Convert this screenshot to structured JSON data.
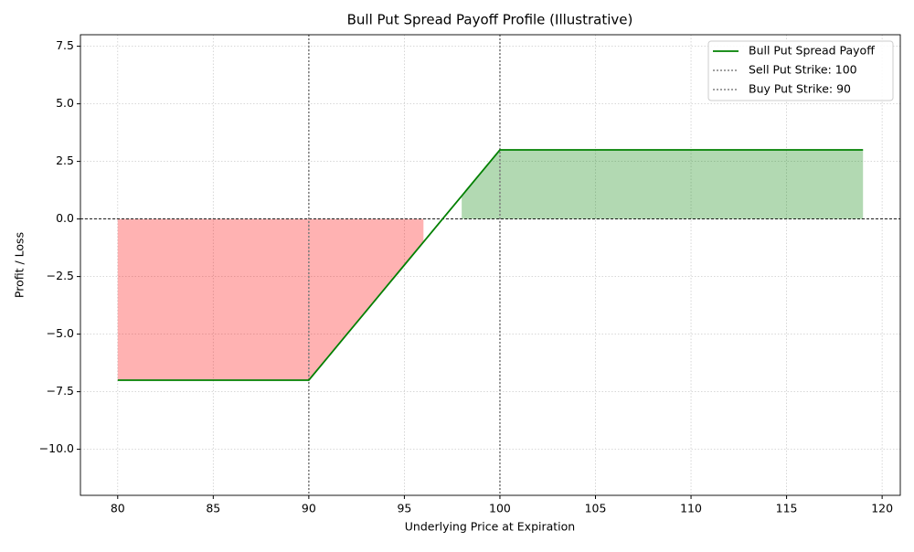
{
  "chart_data": {
    "type": "line",
    "title": "Bull Put Spread Payoff Profile (Illustrative)",
    "xlabel": "Underlying Price at Expiration",
    "ylabel": "Profit / Loss",
    "x": [
      80,
      81,
      82,
      83,
      84,
      85,
      86,
      87,
      88,
      89,
      90,
      91,
      92,
      93,
      94,
      95,
      96,
      97,
      98,
      99,
      100,
      101,
      102,
      103,
      104,
      105,
      106,
      107,
      108,
      109,
      110,
      111,
      112,
      113,
      114,
      115,
      116,
      117,
      118,
      119
    ],
    "series": [
      {
        "name": "Bull Put Spread Payoff",
        "color": "#008000",
        "values": [
          -7,
          -7,
          -7,
          -7,
          -7,
          -7,
          -7,
          -7,
          -7,
          -7,
          -7,
          -6,
          -5,
          -4,
          -3,
          -2,
          -1,
          0,
          1,
          2,
          3,
          3,
          3,
          3,
          3,
          3,
          3,
          3,
          3,
          3,
          3,
          3,
          3,
          3,
          3,
          3,
          3,
          3,
          3,
          3
        ]
      }
    ],
    "loss_fill_color": "#ff0000",
    "profit_fill_color": "#008000",
    "fill_alpha": 0.3,
    "vlines": [
      {
        "x": 100,
        "name": "Sell Put Strike: 100",
        "color": "#808080"
      },
      {
        "x": 90,
        "name": "Buy Put Strike: 90",
        "color": "#808080"
      }
    ],
    "hline": 0,
    "xlim": [
      78.05,
      120.95
    ],
    "xticks": [
      80,
      85,
      90,
      95,
      100,
      105,
      110,
      115,
      120
    ],
    "ylim": [
      -12,
      8
    ],
    "yticks": [
      {
        "value": -10,
        "label": "−10.0"
      },
      {
        "value": -7.5,
        "label": "−7.5"
      },
      {
        "value": -5,
        "label": "−5.0"
      },
      {
        "value": -2.5,
        "label": "−2.5"
      },
      {
        "value": 0,
        "label": "0.0"
      },
      2.5,
      {
        "value": 5,
        "label": "5.0"
      },
      7.5
    ],
    "grid": true,
    "legend": "upper right"
  }
}
